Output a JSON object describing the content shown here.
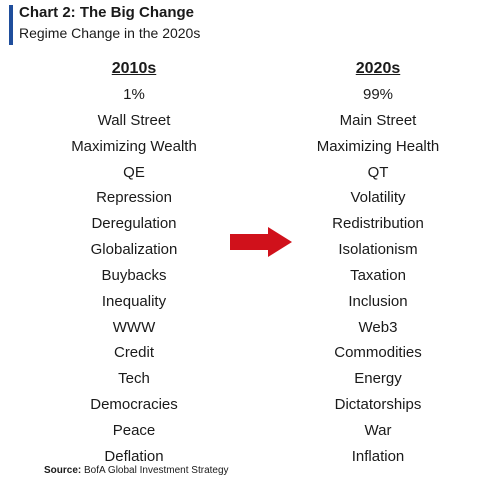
{
  "title": "Chart 2: The Big Change",
  "subtitle": "Regime Change in the 2020s",
  "accent_color": "#1f4e9c",
  "arrow_color": "#d0111b",
  "left_column": {
    "header": "2010s",
    "items": [
      "1%",
      "Wall Street",
      "Maximizing Wealth",
      "QE",
      "Repression",
      "Deregulation",
      "Globalization",
      "Buybacks",
      "Inequality",
      "WWW",
      "Credit",
      "Tech",
      "Democracies",
      "Peace",
      "Deflation"
    ]
  },
  "right_column": {
    "header": "2020s",
    "items": [
      "99%",
      "Main Street",
      "Maximizing Health",
      "QT",
      "Volatility",
      "Redistribution",
      "Isolationism",
      "Taxation",
      "Inclusion",
      "Web3",
      "Commodities",
      "Energy",
      "Dictatorships",
      "War",
      "Inflation"
    ]
  },
  "arrow_icon": "right-arrow-icon",
  "source": {
    "label": "Source:",
    "text": "BofA Global Investment Strategy"
  }
}
